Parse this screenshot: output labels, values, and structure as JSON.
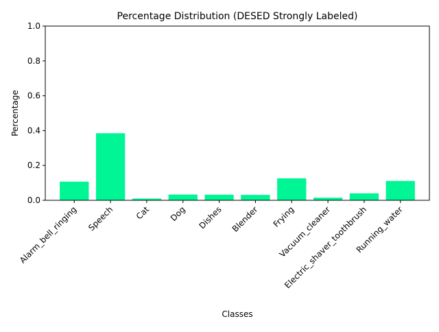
{
  "chart_data": {
    "type": "bar",
    "title": "Percentage Distribution (DESED Strongly Labeled)",
    "xlabel": "Classes",
    "ylabel": "Percentage",
    "categories": [
      "Alarm_bell_ringing",
      "Speech",
      "Cat",
      "Dog",
      "Dishes",
      "Blender",
      "Frying",
      "Vacuum_cleaner",
      "Electric_shaver_toothbrush",
      "Running_water"
    ],
    "values": [
      0.107,
      0.385,
      0.01,
      0.033,
      0.032,
      0.031,
      0.126,
      0.015,
      0.04,
      0.111
    ],
    "ylim": [
      0,
      1.0
    ],
    "yticks": [
      0.0,
      0.2,
      0.4,
      0.6,
      0.8,
      1.0
    ],
    "ytick_labels": [
      "0.0",
      "0.2",
      "0.4",
      "0.6",
      "0.8",
      "1.0"
    ],
    "bar_color": "#00f595",
    "grid": false,
    "legend": false
  }
}
